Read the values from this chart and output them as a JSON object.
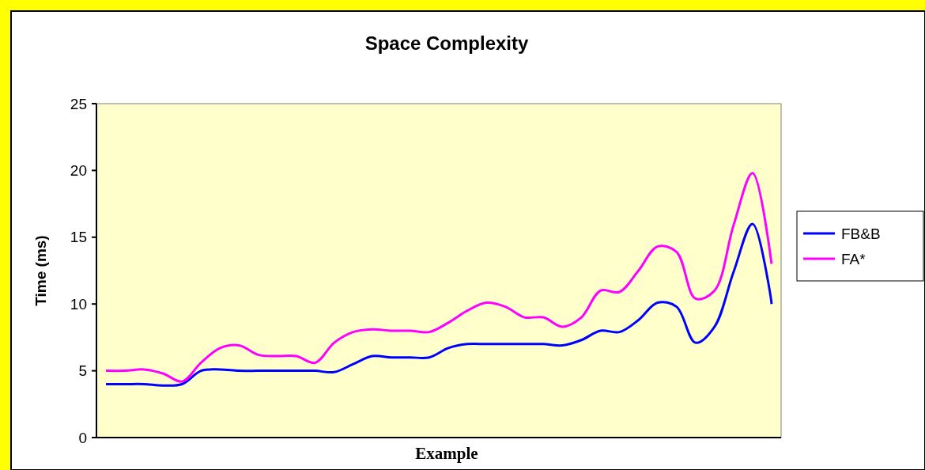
{
  "chart_data": {
    "type": "line",
    "title": "Space Complexity",
    "xlabel": "Example",
    "ylabel": "Time (ms)",
    "categories": [
      null,
      null,
      null,
      null,
      null,
      null,
      null,
      null,
      null,
      null,
      null,
      null,
      null,
      null,
      null,
      null,
      null,
      null,
      null,
      null,
      null,
      null,
      null,
      null,
      null,
      null,
      null,
      null,
      null,
      null,
      null,
      null,
      null,
      null,
      null,
      null
    ],
    "series": [
      {
        "name": "FB&B",
        "color": "#0000ff",
        "values": [
          4,
          4,
          4,
          3.9,
          4,
          5,
          5.1,
          5,
          5,
          5,
          5,
          5,
          4.9,
          5.5,
          6.1,
          6,
          6,
          6,
          6.7,
          7,
          7,
          7,
          7,
          7,
          6.9,
          7.3,
          8,
          7.9,
          8.8,
          10.1,
          9.8,
          7.1,
          8.3,
          12.4,
          16,
          10
        ]
      },
      {
        "name": "FA*",
        "color": "#ff00ff",
        "values": [
          5,
          5,
          5.1,
          4.8,
          4.2,
          5.6,
          6.7,
          6.9,
          6.2,
          6.1,
          6.1,
          5.6,
          7.1,
          7.9,
          8.1,
          8,
          8,
          7.9,
          8.6,
          9.5,
          10.1,
          9.8,
          9,
          9,
          8.3,
          9,
          11,
          10.9,
          12.5,
          14.3,
          13.9,
          10.4,
          11,
          15.9,
          19.8,
          13
        ]
      }
    ],
    "ylim": [
      0,
      25
    ],
    "yticks": [
      0,
      5,
      10,
      15,
      20,
      25
    ],
    "grid": false,
    "legend": "right",
    "marker": "none",
    "line_style": "solid"
  }
}
